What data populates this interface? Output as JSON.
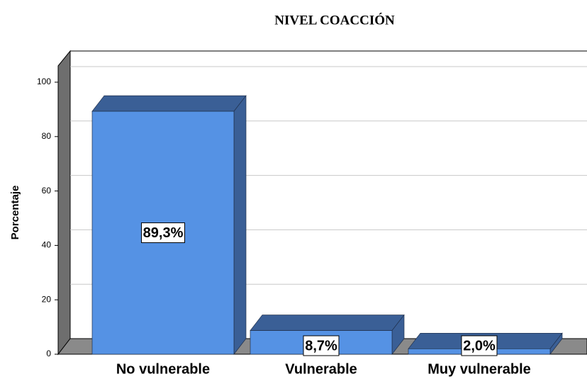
{
  "chart_data": {
    "type": "bar3d",
    "title": "NIVEL COACCIÓN",
    "y_label": "Porcentaje",
    "categories": [
      "No vulnerable",
      "Vulnerable",
      "Muy vulnerable"
    ],
    "values": [
      89.3,
      8.7,
      2.0
    ],
    "value_labels": [
      "89,3%",
      "8,7%",
      "2,0%"
    ],
    "color": "#5592e4",
    "ylim": [
      0,
      100
    ],
    "yticks": [
      0,
      20,
      40,
      60,
      80,
      100
    ],
    "grid": true
  }
}
